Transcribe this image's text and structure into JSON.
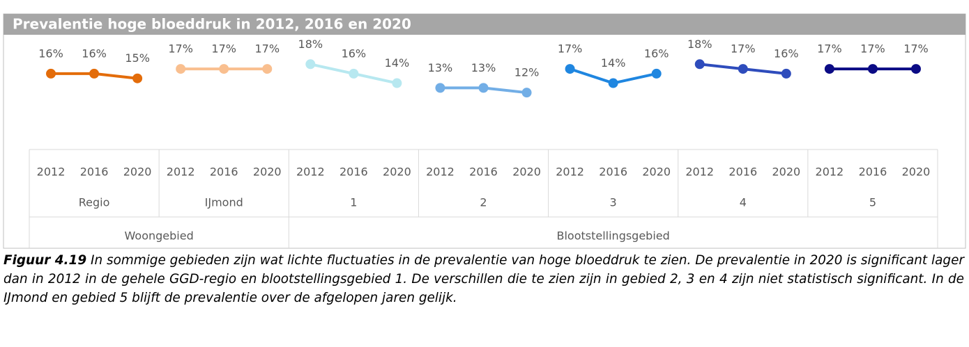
{
  "chart_data": {
    "type": "grouped-line",
    "title": "Prevalentie hoge bloeddruk in 2012, 2016 en 2020",
    "ylim": [
      0,
      22
    ],
    "areas": [
      {
        "name": "Woongebied",
        "series": [
          {
            "name": "Regio",
            "color": "#e36c0a",
            "categories": [
              "2012",
              "2016",
              "2020"
            ],
            "values": [
              16,
              16,
              15
            ],
            "value_labels": [
              "16%",
              "16%",
              "15%"
            ]
          },
          {
            "name": "IJmond",
            "color": "#f9bf8f",
            "categories": [
              "2012",
              "2016",
              "2020"
            ],
            "values": [
              17,
              17,
              17
            ],
            "value_labels": [
              "17%",
              "17%",
              "17%"
            ]
          }
        ]
      },
      {
        "name": "Blootstellingsgebied",
        "series": [
          {
            "name": "1",
            "color": "#b7e8f0",
            "categories": [
              "2012",
              "2016",
              "2020"
            ],
            "values": [
              18,
              16,
              14
            ],
            "value_labels": [
              "18%",
              "16%",
              "14%"
            ]
          },
          {
            "name": "2",
            "color": "#72aee6",
            "categories": [
              "2012",
              "2016",
              "2020"
            ],
            "values": [
              13,
              13,
              12
            ],
            "value_labels": [
              "13%",
              "13%",
              "12%"
            ]
          },
          {
            "name": "3",
            "color": "#1f86e0",
            "categories": [
              "2012",
              "2016",
              "2020"
            ],
            "values": [
              17,
              14,
              16
            ],
            "value_labels": [
              "17%",
              "14%",
              "16%"
            ]
          },
          {
            "name": "4",
            "color": "#2e4cbc",
            "categories": [
              "2012",
              "2016",
              "2020"
            ],
            "values": [
              18,
              17,
              16
            ],
            "value_labels": [
              "18%",
              "17%",
              "16%"
            ]
          },
          {
            "name": "5",
            "color": "#0b0b85",
            "categories": [
              "2012",
              "2016",
              "2020"
            ],
            "values": [
              17,
              17,
              17
            ],
            "value_labels": [
              "17%",
              "17%",
              "17%"
            ]
          }
        ]
      }
    ],
    "caption_label": "Figuur 4.19",
    "caption": "In sommige gebieden zijn wat lichte fluctuaties in de prevalentie van hoge bloeddruk te zien. De prevalentie in 2020 is significant lager dan in 2012 in de gehele GGD-regio en blootstellingsgebied 1. De verschillen die te zien zijn in gebied 2, 3 en 4 zijn niet statistisch significant. In de IJmond en gebied 5 blijft de prevalentie over de afgelopen jaren gelijk."
  }
}
